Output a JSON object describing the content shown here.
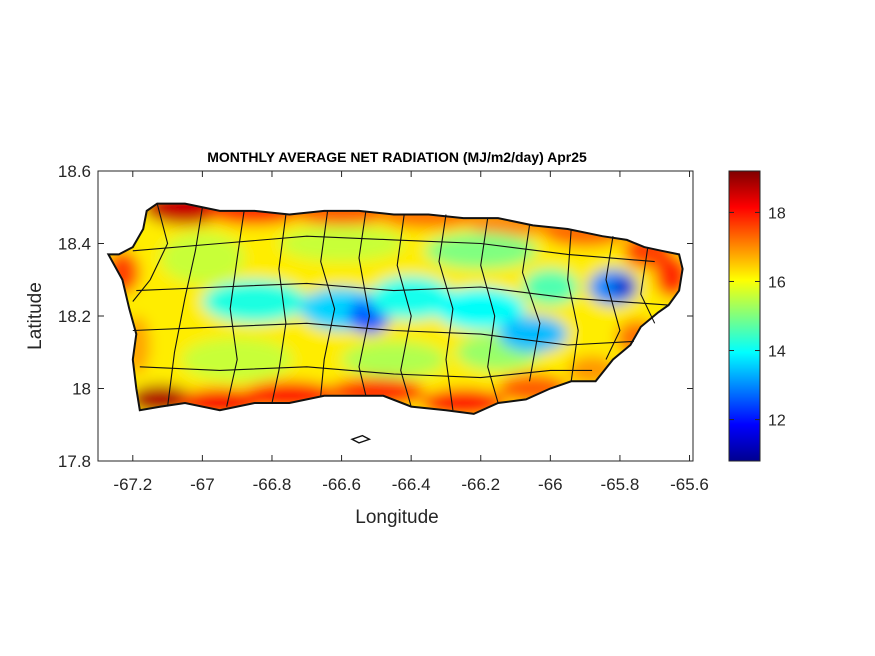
{
  "chart_data": {
    "type": "heatmap",
    "title": "MONTHLY AVERAGE NET RADIATION (MJ/m2/day) Apr25",
    "xlabel": "Longitude",
    "ylabel": "Latitude",
    "xlim": [
      -67.3,
      -65.59
    ],
    "ylim": [
      17.8,
      18.6
    ],
    "x_ticks": [
      -67.2,
      -67,
      -66.8,
      -66.6,
      -66.4,
      -66.2,
      -66,
      -65.8,
      -65.6
    ],
    "x_tick_labels": [
      "-67.2",
      "-67",
      "-66.8",
      "-66.6",
      "-66.4",
      "-66.2",
      "-66",
      "-65.8",
      "-65.6"
    ],
    "y_ticks": [
      17.8,
      18,
      18.2,
      18.4,
      18.6
    ],
    "y_tick_labels": [
      "17.8",
      "18",
      "18.2",
      "18.4",
      "18.6"
    ],
    "colorbar": {
      "colormap": "jet",
      "range": [
        10.8,
        19.2
      ],
      "ticks": [
        12,
        14,
        16,
        18
      ],
      "tick_labels": [
        "12",
        "14",
        "16",
        "18"
      ]
    },
    "grid": false,
    "field_description": "Net radiation over Puerto Rico with municipality boundaries; coastal values ~17-19, interior mountains ~13-15, minimum ~11-12 near -65.8, 18.28"
  }
}
